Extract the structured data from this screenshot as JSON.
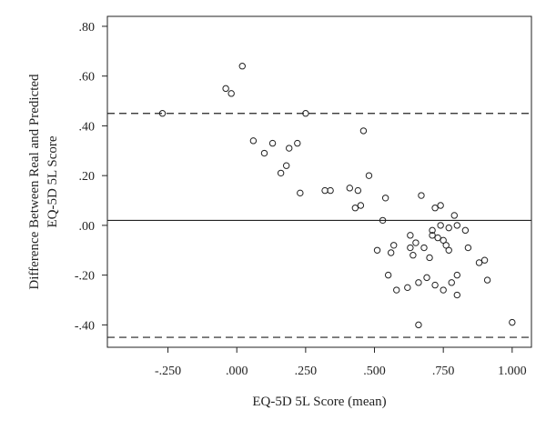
{
  "chart_data": {
    "type": "scatter",
    "title": "",
    "xlabel": "EQ-5D 5L Score (mean)",
    "ylabel": [
      "Difference Between Real and Predicted",
      "EQ-5D 5L Score"
    ],
    "xlim": [
      -0.47,
      1.07
    ],
    "ylim": [
      -0.49,
      0.84
    ],
    "x_ticks": [
      {
        "value": -0.25,
        "label": "-.250"
      },
      {
        "value": 0.0,
        "label": ".000"
      },
      {
        "value": 0.25,
        "label": ".250"
      },
      {
        "value": 0.5,
        "label": ".500"
      },
      {
        "value": 0.75,
        "label": ".750"
      },
      {
        "value": 1.0,
        "label": "1.000"
      }
    ],
    "y_ticks": [
      {
        "value": 0.8,
        "label": ".80"
      },
      {
        "value": 0.6,
        "label": ".60"
      },
      {
        "value": 0.4,
        "label": ".40"
      },
      {
        "value": 0.2,
        "label": ".20"
      },
      {
        "value": 0.0,
        "label": ".00"
      },
      {
        "value": -0.2,
        "label": "-.20"
      },
      {
        "value": -0.4,
        "label": "-.40"
      }
    ],
    "reference_lines": [
      {
        "kind": "mean",
        "y": 0.02,
        "style": "solid"
      },
      {
        "kind": "upper-limit",
        "y": 0.45,
        "style": "dashed"
      },
      {
        "kind": "lower-limit",
        "y": -0.45,
        "style": "dashed"
      }
    ],
    "grid": false,
    "legend": "none",
    "marker": "open-circle",
    "colors": {
      "marker": "#222222",
      "axis": "#222222",
      "line": "#222222"
    },
    "points": [
      [
        -0.27,
        0.45
      ],
      [
        -0.04,
        0.55
      ],
      [
        -0.02,
        0.53
      ],
      [
        0.02,
        0.64
      ],
      [
        0.06,
        0.34
      ],
      [
        0.1,
        0.29
      ],
      [
        0.13,
        0.33
      ],
      [
        0.16,
        0.21
      ],
      [
        0.18,
        0.24
      ],
      [
        0.19,
        0.31
      ],
      [
        0.22,
        0.33
      ],
      [
        0.23,
        0.13
      ],
      [
        0.25,
        0.45
      ],
      [
        0.32,
        0.14
      ],
      [
        0.34,
        0.14
      ],
      [
        0.41,
        0.15
      ],
      [
        0.43,
        0.07
      ],
      [
        0.44,
        0.14
      ],
      [
        0.45,
        0.08
      ],
      [
        0.46,
        0.38
      ],
      [
        0.48,
        0.2
      ],
      [
        0.51,
        -0.1
      ],
      [
        0.53,
        0.02
      ],
      [
        0.54,
        0.11
      ],
      [
        0.55,
        -0.2
      ],
      [
        0.56,
        -0.11
      ],
      [
        0.57,
        -0.08
      ],
      [
        0.58,
        -0.26
      ],
      [
        0.62,
        -0.25
      ],
      [
        0.63,
        -0.04
      ],
      [
        0.63,
        -0.09
      ],
      [
        0.64,
        -0.12
      ],
      [
        0.65,
        -0.07
      ],
      [
        0.66,
        -0.23
      ],
      [
        0.66,
        -0.4
      ],
      [
        0.67,
        0.12
      ],
      [
        0.68,
        -0.09
      ],
      [
        0.69,
        -0.21
      ],
      [
        0.7,
        -0.13
      ],
      [
        0.71,
        -0.02
      ],
      [
        0.71,
        -0.04
      ],
      [
        0.72,
        0.07
      ],
      [
        0.72,
        -0.24
      ],
      [
        0.73,
        -0.05
      ],
      [
        0.74,
        0.0
      ],
      [
        0.74,
        0.08
      ],
      [
        0.75,
        -0.26
      ],
      [
        0.75,
        -0.06
      ],
      [
        0.76,
        -0.08
      ],
      [
        0.77,
        -0.01
      ],
      [
        0.77,
        -0.1
      ],
      [
        0.78,
        -0.23
      ],
      [
        0.79,
        0.04
      ],
      [
        0.8,
        -0.2
      ],
      [
        0.8,
        -0.28
      ],
      [
        0.8,
        0.0
      ],
      [
        0.83,
        -0.02
      ],
      [
        0.84,
        -0.09
      ],
      [
        0.88,
        -0.15
      ],
      [
        0.9,
        -0.14
      ],
      [
        0.91,
        -0.22
      ],
      [
        1.0,
        -0.39
      ]
    ]
  }
}
